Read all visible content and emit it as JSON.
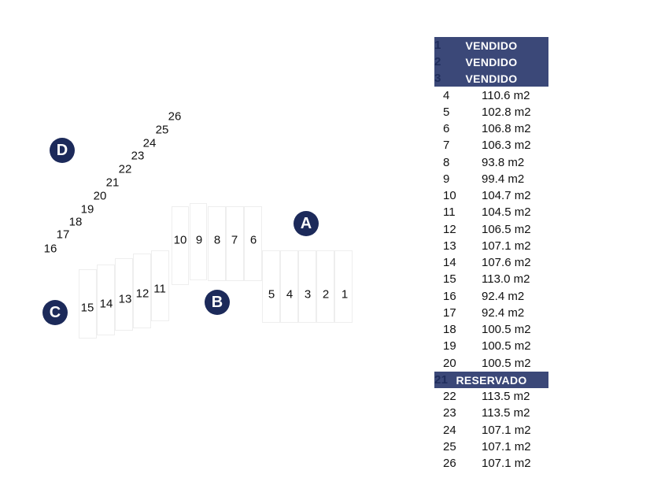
{
  "map": {
    "zones": [
      "A",
      "B",
      "C",
      "D"
    ],
    "lot_labels": [
      "1",
      "2",
      "3",
      "4",
      "5",
      "6",
      "7",
      "8",
      "9",
      "10",
      "11",
      "12",
      "13",
      "14",
      "15",
      "16",
      "17",
      "18",
      "19",
      "20",
      "21",
      "22",
      "23",
      "24",
      "25",
      "26"
    ]
  },
  "table": {
    "rows": [
      {
        "lot": "1",
        "area": "",
        "status": "VENDIDO"
      },
      {
        "lot": "2",
        "area": "",
        "status": "VENDIDO"
      },
      {
        "lot": "3",
        "area": "",
        "status": "VENDIDO"
      },
      {
        "lot": "4",
        "area": "110.6 m2"
      },
      {
        "lot": "5",
        "area": "102.8 m2"
      },
      {
        "lot": "6",
        "area": "106.8 m2"
      },
      {
        "lot": "7",
        "area": "106.3 m2"
      },
      {
        "lot": "8",
        "area": "93.8 m2"
      },
      {
        "lot": "9",
        "area": "99.4 m2"
      },
      {
        "lot": "10",
        "area": "104.7 m2"
      },
      {
        "lot": "11",
        "area": "104.5 m2"
      },
      {
        "lot": "12",
        "area": "106.5 m2"
      },
      {
        "lot": "13",
        "area": "107.1 m2"
      },
      {
        "lot": "14",
        "area": "107.6 m2"
      },
      {
        "lot": "15",
        "area": "113.0 m2"
      },
      {
        "lot": "16",
        "area": "92.4 m2"
      },
      {
        "lot": "17",
        "area": "92.4 m2"
      },
      {
        "lot": "18",
        "area": "100.5 m2"
      },
      {
        "lot": "19",
        "area": "100.5 m2"
      },
      {
        "lot": "20",
        "area": "100.5 m2"
      },
      {
        "lot": "21",
        "area": "",
        "status": "RESERVADO"
      },
      {
        "lot": "22",
        "area": "113.5 m2"
      },
      {
        "lot": "23",
        "area": "113.5 m2"
      },
      {
        "lot": "24",
        "area": "107.1 m2"
      },
      {
        "lot": "25",
        "area": "107.1 m2"
      },
      {
        "lot": "26",
        "area": "107.1 m2"
      }
    ]
  },
  "colors": {
    "zone_badge": "#1c2a5a",
    "status_banner": "#3b4878"
  }
}
